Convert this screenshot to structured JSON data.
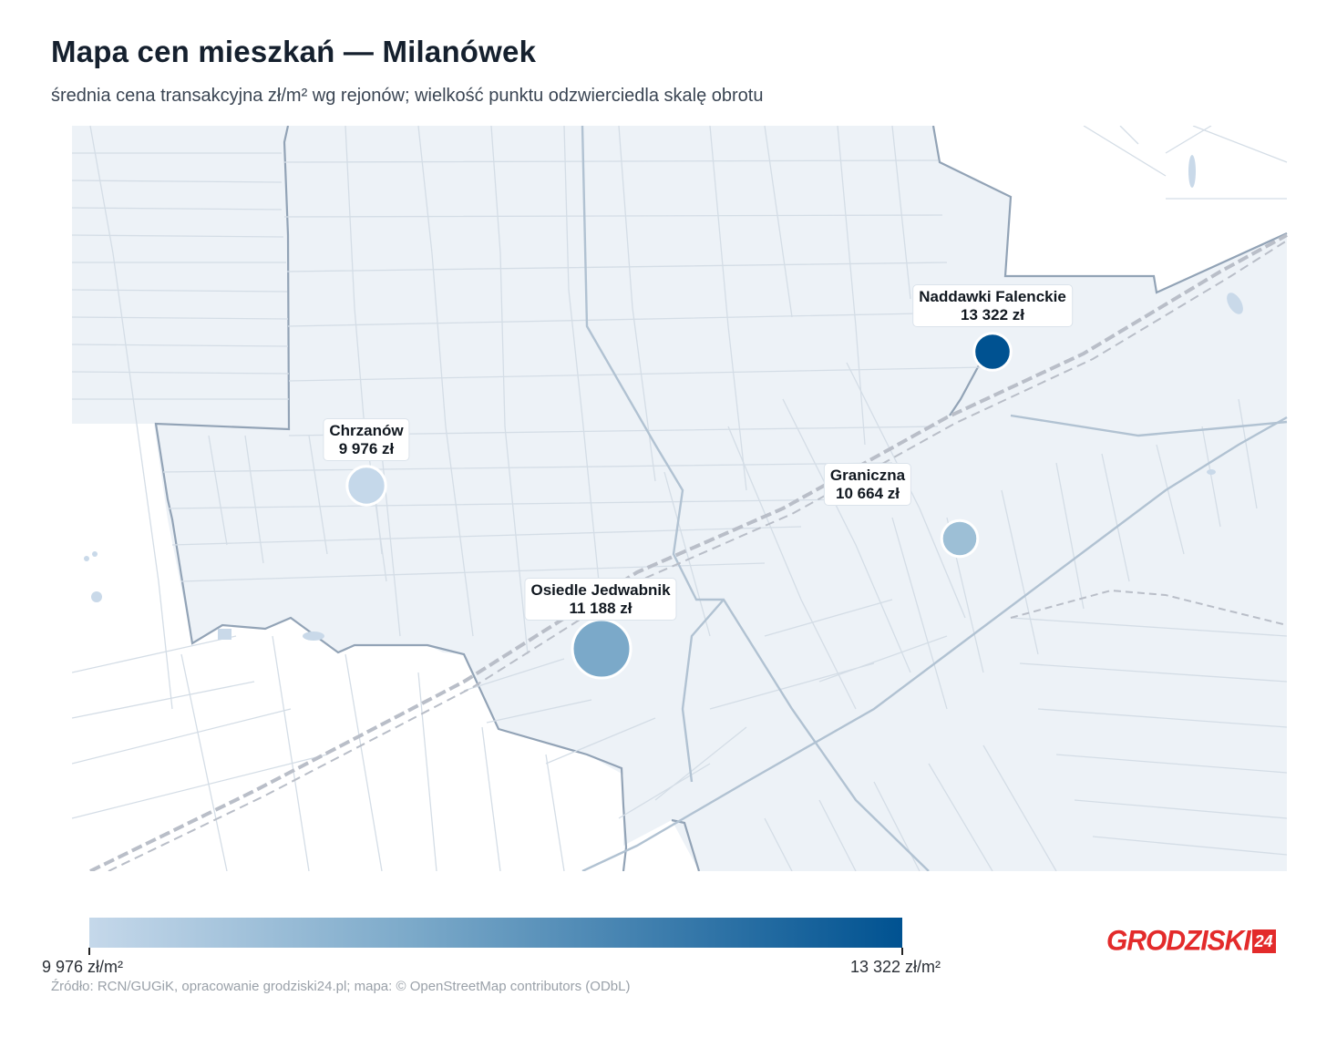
{
  "title": "Mapa cen mieszkań — Milanówek",
  "subtitle": "średnia cena transakcyjna zł/m² wg rejonów; wielkość punktu odzwierciedla skalę obrotu",
  "colors": {
    "scale_min": "#c5d8ea",
    "scale_mid": "#7ba9c9",
    "scale_max": "#005291",
    "area_fill": "#edf2f7",
    "boundary": "#92a3b6",
    "road": "#d4dde6",
    "main_road": "#b1c2d2",
    "railway": "#b9bec8",
    "logo": "#e32b2b"
  },
  "markers": [
    {
      "name": "Nadawki Falenckie",
      "label_name": "Naddawki Falenckie",
      "price": "13 322 zł",
      "price_value": 13322,
      "color": "#005291",
      "relative_turnover": 0.35
    },
    {
      "name": "Chrzanów",
      "label_name": "Chrzanów",
      "price": "9 976 zł",
      "price_value": 9976,
      "color": "#c5d8ea",
      "relative_turnover": 0.4
    },
    {
      "name": "Graniczna",
      "label_name": "Graniczna",
      "price": "10 664 zł",
      "price_value": 10664,
      "color": "#9dbfd6",
      "relative_turnover": 0.32
    },
    {
      "name": "Osiedle Jedwabnik",
      "label_name": "Osiedle Jedwabnik",
      "price": "11 188 zł",
      "price_value": 11188,
      "color": "#7ba9c9",
      "relative_turnover": 1.0
    }
  ],
  "legend": {
    "min_label": "9 976 zł/m²",
    "max_label": "13 322 zł/m²",
    "min_value": 9976,
    "max_value": 13322
  },
  "source": "Źródło: RCN/GUGiK, opracowanie grodziski24.pl; mapa: © OpenStreetMap contributors (ODbL)",
  "logo": {
    "text": "GRODZISKI",
    "badge": "24"
  }
}
